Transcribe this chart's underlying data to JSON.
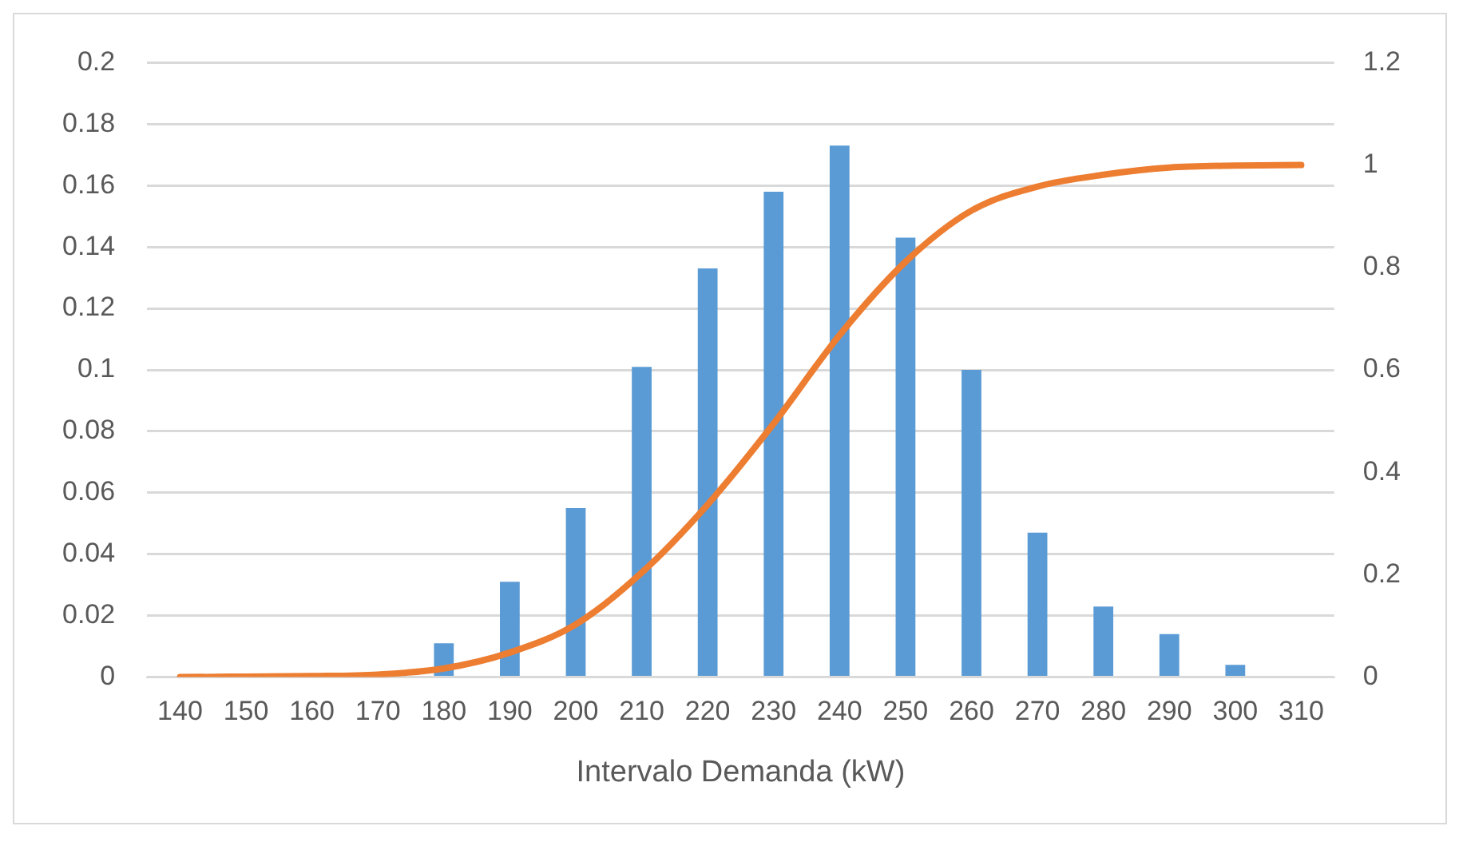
{
  "chart_data": {
    "type": "bar",
    "xlabel": "Intervalo Demanda (kW)",
    "categories": [
      "140",
      "150",
      "160",
      "170",
      "180",
      "190",
      "200",
      "210",
      "220",
      "230",
      "240",
      "250",
      "260",
      "270",
      "280",
      "290",
      "300",
      "310"
    ],
    "series": [
      {
        "color": "#5b9bd5",
        "values": [
          0,
          0,
          0,
          0,
          0.011,
          0.031,
          0.055,
          0.101,
          0.133,
          0.158,
          0.173,
          0.143,
          0.1,
          0.047,
          0.023,
          0.014,
          0.004,
          0
        ]
      },
      {
        "type": "line",
        "axis": "y2",
        "color": "#ed7d31",
        "marker": "none",
        "values": [
          0,
          0.001,
          0.002,
          0.005,
          0.017,
          0.048,
          0.103,
          0.204,
          0.337,
          0.495,
          0.668,
          0.811,
          0.911,
          0.958,
          0.981,
          0.995,
          0.999,
          1.0
        ]
      }
    ],
    "ylim": [
      0,
      0.2
    ],
    "yticks": [
      0,
      0.02,
      0.04,
      0.06,
      0.08,
      0.1,
      0.12,
      0.14,
      0.16,
      0.18,
      0.2
    ],
    "y2lim": [
      0,
      1.2
    ],
    "y2ticks": [
      0,
      0.2,
      0.4,
      0.6,
      0.8,
      1,
      1.2
    ],
    "grid": "y",
    "legend": false
  }
}
